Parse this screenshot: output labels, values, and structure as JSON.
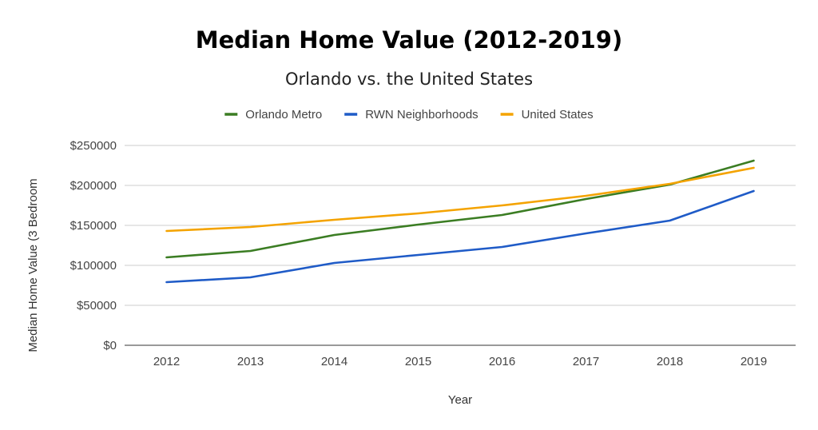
{
  "chart_data": {
    "type": "line",
    "title": "Median Home Value (2012-2019)",
    "subtitle": "Orlando vs. the United States",
    "xlabel": "Year",
    "ylabel": "Median Home Value (3 Bedroom",
    "categories": [
      "2012",
      "2013",
      "2014",
      "2015",
      "2016",
      "2017",
      "2018",
      "2019"
    ],
    "ylim": [
      0,
      250000
    ],
    "yticks": [
      0,
      50000,
      100000,
      150000,
      200000,
      250000
    ],
    "ytick_labels": [
      "$0",
      "$50000",
      "$100000",
      "$150000",
      "$200000",
      "$250000"
    ],
    "grid": true,
    "legend_position": "top-center",
    "series": [
      {
        "name": "Orlando Metro",
        "color": "#3b7d23",
        "values": [
          110000,
          118000,
          138000,
          151000,
          163000,
          183000,
          201000,
          231000
        ]
      },
      {
        "name": "RWN Neighborhoods",
        "color": "#1f5bc7",
        "values": [
          79000,
          85000,
          103000,
          113000,
          123000,
          140000,
          156000,
          193000
        ]
      },
      {
        "name": "United States",
        "color": "#f4a300",
        "values": [
          143000,
          148000,
          157000,
          165000,
          175000,
          187000,
          202000,
          222000
        ]
      }
    ]
  }
}
